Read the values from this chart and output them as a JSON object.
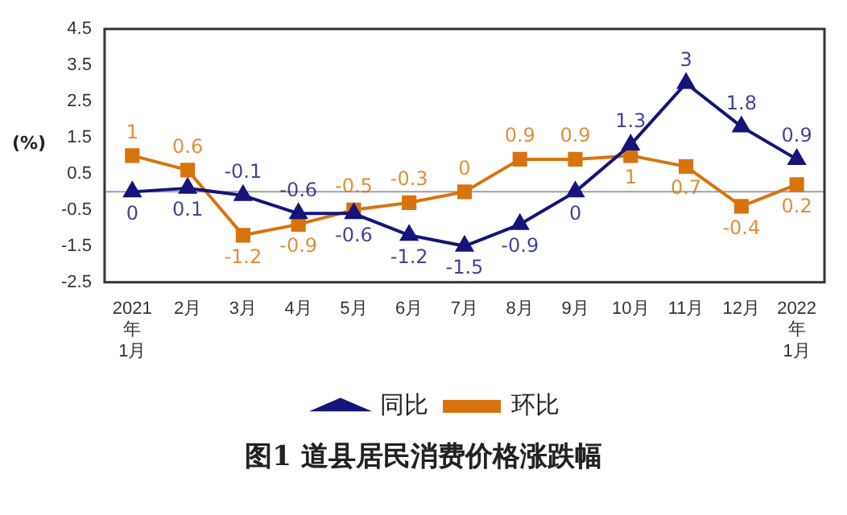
{
  "chart_data": {
    "type": "line",
    "title": "图1  道县居民消费价格涨跌幅",
    "ylabel": "(%)",
    "categories": [
      "2021年1月",
      "2月",
      "3月",
      "4月",
      "5月",
      "6月",
      "7月",
      "8月",
      "9月",
      "10月",
      "11月",
      "12月",
      "2022年1月"
    ],
    "series": [
      {
        "name": "同比",
        "color": "#14147a",
        "marker": "triangle",
        "values": [
          0,
          0.1,
          -0.1,
          -0.6,
          -0.6,
          -1.2,
          -1.5,
          -0.9,
          0,
          1.3,
          3,
          1.8,
          0.9
        ]
      },
      {
        "name": "环比",
        "color": "#d9730d",
        "marker": "square",
        "values": [
          1,
          0.6,
          -1.2,
          -0.9,
          -0.5,
          -0.3,
          0,
          0.9,
          0.9,
          1,
          0.7,
          -0.4,
          0.2
        ]
      }
    ],
    "ylim": [
      -2.5,
      4.5
    ],
    "yticks": [
      -2.5,
      -1.5,
      -0.5,
      0.5,
      1.5,
      2.5,
      3.5,
      4.5
    ],
    "ref_lines": [
      {
        "axis": "y",
        "value": 0,
        "color": "#a0a0a0"
      }
    ],
    "grid": false,
    "legend": "bottom",
    "data_labels": true,
    "line_style": "solid"
  }
}
